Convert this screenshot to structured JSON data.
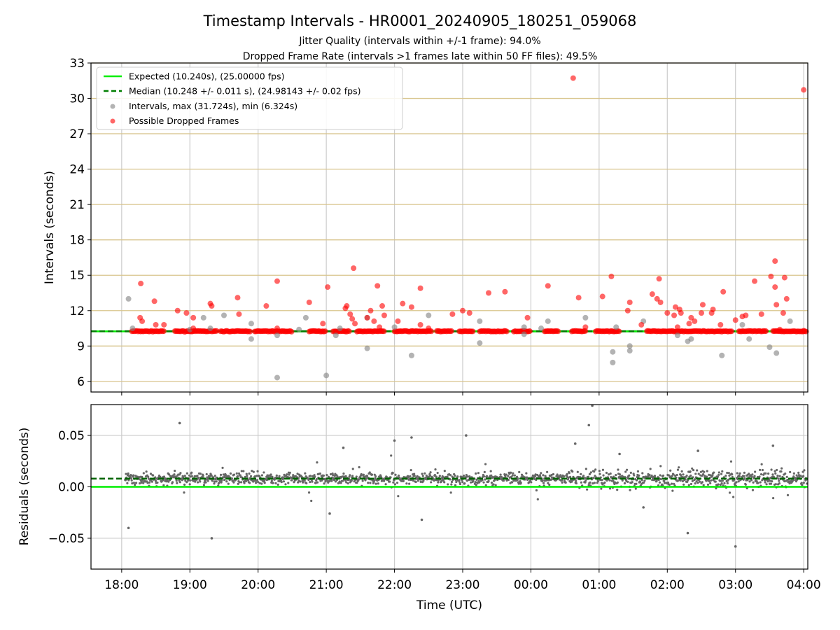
{
  "figure": {
    "title": "Timestamp Intervals - HR0001_20240905_180251_059068",
    "subtitle_1": "Jitter Quality (intervals within +/-1 frame): 94.0%",
    "subtitle_2": "Dropped Frame Rate (intervals >1 frames late within 50 FF files): 49.5%"
  },
  "chart_data": [
    {
      "type": "scatter",
      "panel": "intervals",
      "ylabel": "Intervals (seconds)",
      "xlabel": "",
      "ylim": [
        5.1,
        33
      ],
      "yticks": [
        "6",
        "9",
        "12",
        "15",
        "18",
        "21",
        "24",
        "27",
        "30",
        "33"
      ],
      "xticks": [
        "18:00",
        "19:00",
        "20:00",
        "21:00",
        "22:00",
        "23:00",
        "00:00",
        "01:00",
        "02:00",
        "03:00",
        "04:00"
      ],
      "x_range_hours_from_1800": [
        -0.45,
        10.06
      ],
      "grid": "vertical grey, horizontal tan",
      "legend_position": "upper-left",
      "legend": [
        {
          "label": "Expected (10.240s), (25.00000 fps)",
          "kind": "line",
          "color": "#00ee00",
          "dash": "solid"
        },
        {
          "label": "Median (10.248 +/- 0.011 s), (24.98143 +/- 0.02 fps)",
          "kind": "line",
          "color": "#007f00",
          "dash": "dashed"
        },
        {
          "label": "Intervals, max (31.724s), min (6.324s)",
          "kind": "marker",
          "color": "#808080"
        },
        {
          "label": "Possible Dropped Frames",
          "kind": "marker",
          "color": "#ff0000"
        }
      ],
      "expected_interval": 10.24,
      "median_interval": 10.248,
      "band": {
        "x_start": 0.05,
        "x_end": 10.06,
        "y_low": 10.16,
        "y_high": 10.34
      },
      "series": [
        {
          "name": "Intervals, max (31.724s), min (6.324s)",
          "color": "#808080",
          "points": [
            [
              0.1,
              13.0
            ],
            [
              0.16,
              10.5
            ],
            [
              1.0,
              10.4
            ],
            [
              1.2,
              11.4
            ],
            [
              1.3,
              10.5
            ],
            [
              1.5,
              11.6
            ],
            [
              1.9,
              10.9
            ],
            [
              1.9,
              9.6
            ],
            [
              2.28,
              6.32
            ],
            [
              2.28,
              9.9
            ],
            [
              2.6,
              10.4
            ],
            [
              2.7,
              11.4
            ],
            [
              3.0,
              6.5
            ],
            [
              3.14,
              9.9
            ],
            [
              3.2,
              10.5
            ],
            [
              3.6,
              8.8
            ],
            [
              3.6,
              11.4
            ],
            [
              4.0,
              10.6
            ],
            [
              4.25,
              8.2
            ],
            [
              4.5,
              11.6
            ],
            [
              5.25,
              11.1
            ],
            [
              5.25,
              9.25
            ],
            [
              5.9,
              10.6
            ],
            [
              5.9,
              10.0
            ],
            [
              6.15,
              10.5
            ],
            [
              6.25,
              11.1
            ],
            [
              6.8,
              11.4
            ],
            [
              7.2,
              8.5
            ],
            [
              7.2,
              7.6
            ],
            [
              7.25,
              10.6
            ],
            [
              7.45,
              8.6
            ],
            [
              7.45,
              9.0
            ],
            [
              7.65,
              11.1
            ],
            [
              8.15,
              9.9
            ],
            [
              8.3,
              9.4
            ],
            [
              8.35,
              9.6
            ],
            [
              8.8,
              8.2
            ],
            [
              9.1,
              10.8
            ],
            [
              9.2,
              9.6
            ],
            [
              9.5,
              8.9
            ],
            [
              9.6,
              8.4
            ],
            [
              9.8,
              11.1
            ]
          ]
        },
        {
          "name": "Possible Dropped Frames",
          "color": "#ff0000",
          "points": [
            [
              0.28,
              14.3
            ],
            [
              0.27,
              11.4
            ],
            [
              0.3,
              11.1
            ],
            [
              0.48,
              12.8
            ],
            [
              0.5,
              10.8
            ],
            [
              0.62,
              10.8
            ],
            [
              0.82,
              12.0
            ],
            [
              0.95,
              11.8
            ],
            [
              1.05,
              11.4
            ],
            [
              1.05,
              10.5
            ],
            [
              1.3,
              12.6
            ],
            [
              1.32,
              12.4
            ],
            [
              1.7,
              13.1
            ],
            [
              1.72,
              11.7
            ],
            [
              2.12,
              12.4
            ],
            [
              2.28,
              14.5
            ],
            [
              2.28,
              10.5
            ],
            [
              2.75,
              12.7
            ],
            [
              2.95,
              10.9
            ],
            [
              3.02,
              14.0
            ],
            [
              3.28,
              12.2
            ],
            [
              3.3,
              12.4
            ],
            [
              3.35,
              11.7
            ],
            [
              3.38,
              11.3
            ],
            [
              3.42,
              10.9
            ],
            [
              3.4,
              15.6
            ],
            [
              3.65,
              12.0
            ],
            [
              3.6,
              11.4
            ],
            [
              3.7,
              11.1
            ],
            [
              3.75,
              14.1
            ],
            [
              3.82,
              12.4
            ],
            [
              3.85,
              11.6
            ],
            [
              3.78,
              10.6
            ],
            [
              4.05,
              11.1
            ],
            [
              4.12,
              12.6
            ],
            [
              4.25,
              12.3
            ],
            [
              4.38,
              13.9
            ],
            [
              4.38,
              10.8
            ],
            [
              4.5,
              10.5
            ],
            [
              4.85,
              11.7
            ],
            [
              5.0,
              12.0
            ],
            [
              5.1,
              11.8
            ],
            [
              5.38,
              13.5
            ],
            [
              5.62,
              13.6
            ],
            [
              5.95,
              11.4
            ],
            [
              6.25,
              14.1
            ],
            [
              6.7,
              13.1
            ],
            [
              6.8,
              10.6
            ],
            [
              6.62,
              31.72
            ],
            [
              7.05,
              13.2
            ],
            [
              7.18,
              14.9
            ],
            [
              7.42,
              12.0
            ],
            [
              7.45,
              12.7
            ],
            [
              7.62,
              10.8
            ],
            [
              7.78,
              13.4
            ],
            [
              7.85,
              13.0
            ],
            [
              7.9,
              12.7
            ],
            [
              7.88,
              14.7
            ],
            [
              8.0,
              11.8
            ],
            [
              8.1,
              11.6
            ],
            [
              8.12,
              12.3
            ],
            [
              8.18,
              12.1
            ],
            [
              8.2,
              11.8
            ],
            [
              8.15,
              10.6
            ],
            [
              8.35,
              11.4
            ],
            [
              8.32,
              10.9
            ],
            [
              8.4,
              11.1
            ],
            [
              8.5,
              11.8
            ],
            [
              8.52,
              12.5
            ],
            [
              8.65,
              11.8
            ],
            [
              8.67,
              12.1
            ],
            [
              8.78,
              10.8
            ],
            [
              8.82,
              13.6
            ],
            [
              9.0,
              11.2
            ],
            [
              9.1,
              11.5
            ],
            [
              9.15,
              11.6
            ],
            [
              9.28,
              14.5
            ],
            [
              9.38,
              11.7
            ],
            [
              9.52,
              14.9
            ],
            [
              9.58,
              16.2
            ],
            [
              9.58,
              14.0
            ],
            [
              9.6,
              12.5
            ],
            [
              9.65,
              10.4
            ],
            [
              9.72,
              14.8
            ],
            [
              9.7,
              11.8
            ],
            [
              9.75,
              13.0
            ],
            [
              10.0,
              30.72
            ],
            [
              10.0,
              10.3
            ]
          ]
        }
      ]
    },
    {
      "type": "scatter",
      "panel": "residuals",
      "ylabel": "Residuals (seconds)",
      "xlabel": "Time (UTC)",
      "ylim": [
        -0.08,
        0.08
      ],
      "yticks": [
        "−0.05",
        "0.00",
        "0.05"
      ],
      "xticks": [
        "18:00",
        "19:00",
        "20:00",
        "21:00",
        "22:00",
        "23:00",
        "00:00",
        "01:00",
        "02:00",
        "03:00",
        "04:00"
      ],
      "grid": "both grey",
      "expected_line": 0.0,
      "median_line": 0.008,
      "series": [
        {
          "name": "",
          "color": "#666666",
          "points": [
            [
              0.1,
              -0.04
            ],
            [
              0.85,
              0.062
            ],
            [
              1.32,
              -0.05
            ],
            [
              3.05,
              -0.026
            ],
            [
              3.25,
              0.038
            ],
            [
              4.0,
              0.045
            ],
            [
              4.4,
              -0.032
            ],
            [
              5.05,
              0.05
            ],
            [
              6.65,
              0.042
            ],
            [
              6.9,
              0.079
            ],
            [
              6.85,
              0.06
            ],
            [
              7.3,
              0.032
            ],
            [
              7.65,
              -0.02
            ],
            [
              8.3,
              -0.045
            ],
            [
              8.45,
              0.035
            ],
            [
              9.0,
              -0.058
            ],
            [
              9.55,
              0.04
            ],
            [
              4.25,
              0.048
            ]
          ]
        }
      ]
    }
  ]
}
